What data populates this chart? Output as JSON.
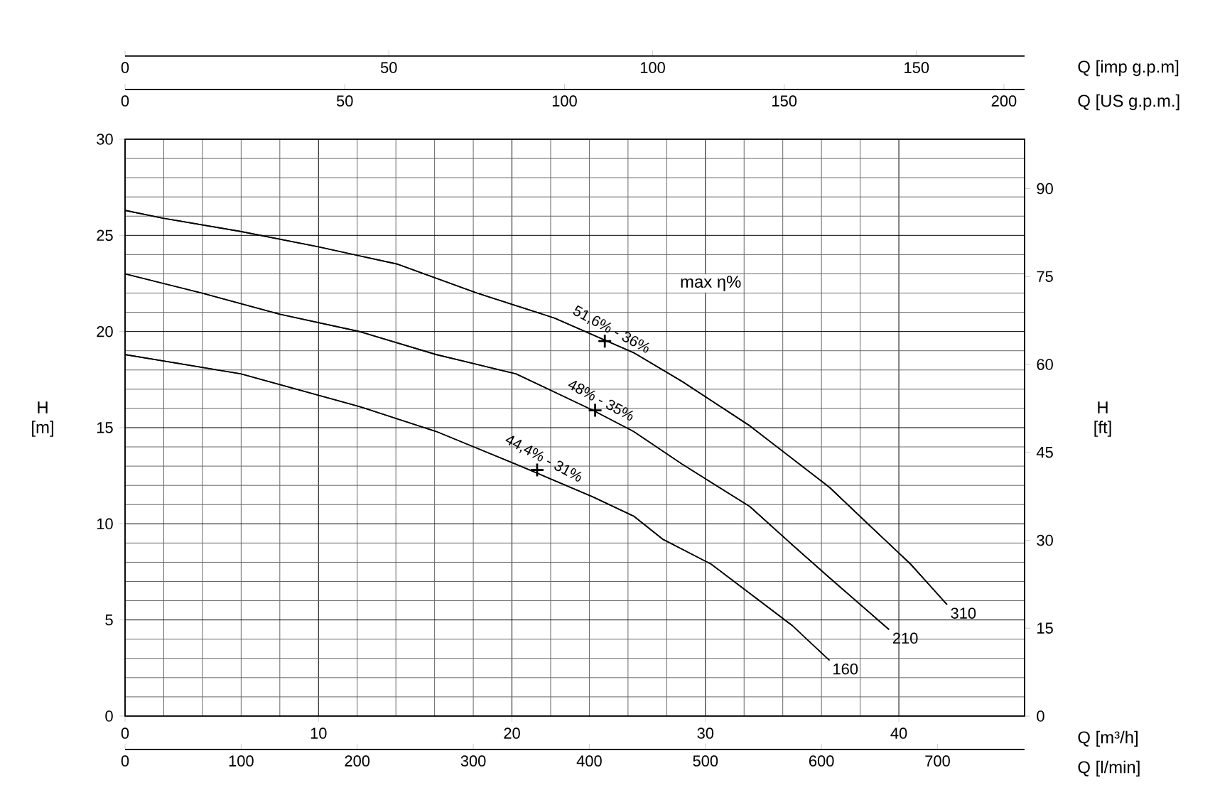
{
  "chart_data": [
    {
      "type": "line",
      "xlabel": "Q [m³/h]",
      "ylabel": "H [m]",
      "y2label": "H [ft]",
      "x2label": "Q [US g.p.m.]",
      "xlim": [
        0,
        46.5
      ],
      "xticks": [
        0,
        10,
        20,
        30,
        40
      ],
      "ylim": [
        0,
        30
      ],
      "yticks": [
        0,
        5,
        10,
        15,
        20,
        25,
        30
      ],
      "y2lim": [
        0,
        98.43
      ],
      "y2ticks": [
        0,
        15,
        30,
        45,
        60,
        75,
        90
      ],
      "x2lim": [
        0,
        204.7
      ],
      "x2ticks": [
        0,
        50,
        100,
        150,
        200
      ],
      "grid": true,
      "series": [
        {
          "name": "310",
          "color": "#000000",
          "x": [
            0,
            1.94,
            5.98,
            10.0,
            14.1,
            18.2,
            22.2,
            26.3,
            28.8,
            32.3,
            36.4,
            38.4,
            40.6,
            42.5
          ],
          "values": [
            26.3,
            25.9,
            25.2,
            24.4,
            23.5,
            22.0,
            20.7,
            18.9,
            17.4,
            15.1,
            11.9,
            10.0,
            7.9,
            5.8
          ]
        },
        {
          "name": "210",
          "color": "#000000",
          "x": [
            0,
            3.97,
            8.0,
            12.1,
            16.1,
            20.2,
            24.2,
            26.3,
            28.8,
            32.3,
            34.5,
            36.4,
            39.5
          ],
          "values": [
            23.0,
            22.0,
            20.9,
            20.0,
            18.8,
            17.8,
            15.9,
            14.8,
            13.1,
            10.9,
            8.9,
            7.2,
            4.5
          ]
        },
        {
          "name": "160",
          "color": "#000000",
          "x": [
            0,
            5.98,
            12.1,
            16.1,
            20.2,
            24.2,
            26.3,
            27.8,
            30.3,
            34.5,
            36.4
          ],
          "values": [
            18.8,
            17.8,
            16.1,
            14.8,
            13.1,
            11.4,
            10.4,
            9.2,
            7.9,
            4.7,
            2.9
          ]
        },
        {
          "type": "scatter",
          "marker": "cross",
          "color": "#000000",
          "x": [
            24.8,
            24.3,
            21.3
          ],
          "values": [
            19.5,
            15.9,
            12.8
          ]
        }
      ],
      "annotations": [
        "max η%",
        {
          "text": "51,6% - 36%",
          "x": 24.8,
          "y": 19.5
        },
        {
          "text": "48% - 35%",
          "x": 24.3,
          "y": 15.9
        },
        {
          "text": "44,4% - 31%",
          "x": 21.3,
          "y": 12.8
        }
      ]
    },
    {
      "type": "line",
      "xlabel": "Q [l/min]",
      "x2label": "Q [imp g.p.m]",
      "tick_labels": "x",
      "xlim": [
        0,
        775
      ],
      "xticks": [
        0,
        100,
        200,
        300,
        400,
        500,
        600,
        700
      ],
      "x2lim": [
        0,
        170.5
      ],
      "x2ticks": [
        0,
        50,
        100,
        150
      ],
      "ylim": [
        0,
        30
      ],
      "series": [
        {
          "color": "#000000",
          "x": [
            0,
            32,
            100,
            167,
            235,
            303,
            370,
            438,
            480,
            538,
            607,
            640,
            677,
            708
          ],
          "values": [
            26.3,
            25.9,
            25.2,
            24.4,
            23.5,
            22.0,
            20.7,
            18.9,
            17.4,
            15.1,
            11.9,
            10.0,
            7.9,
            5.8
          ]
        },
        {
          "color": "#000000",
          "x": [
            0,
            66,
            133,
            202,
            268,
            337,
            403,
            438,
            480,
            538,
            575,
            607,
            658
          ],
          "values": [
            23.0,
            22.0,
            20.9,
            20.0,
            18.8,
            17.8,
            15.9,
            14.8,
            13.1,
            10.9,
            8.9,
            7.2,
            4.5
          ]
        },
        {
          "color": "#000000",
          "x": [
            0,
            100,
            202,
            268,
            337,
            403,
            438,
            463,
            505,
            575,
            607
          ],
          "values": [
            18.8,
            17.8,
            16.1,
            14.8,
            13.1,
            11.4,
            10.4,
            9.2,
            7.9,
            4.7,
            2.9
          ]
        }
      ]
    }
  ]
}
